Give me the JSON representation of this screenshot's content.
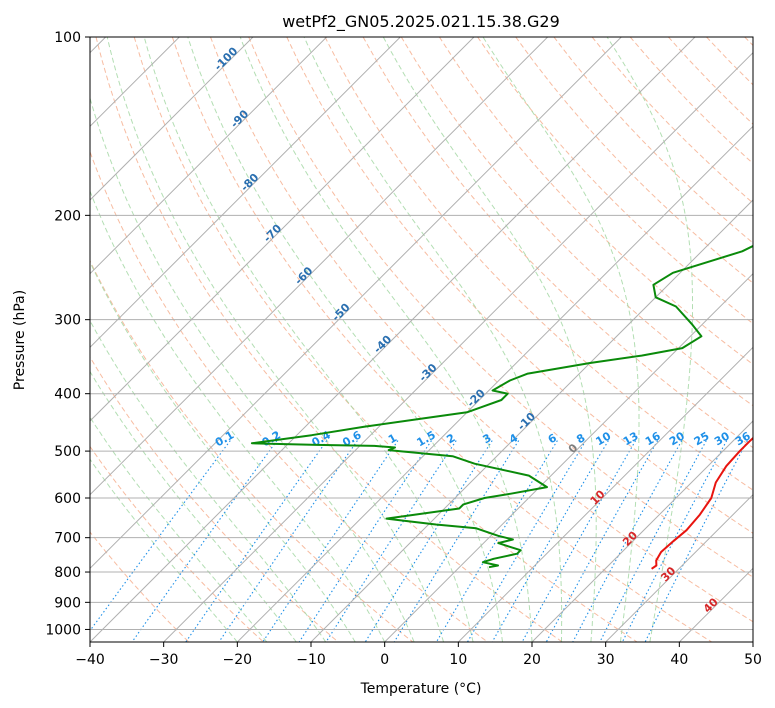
{
  "chart_data": {
    "type": "line",
    "title": "wetPf2_GN05.2025.021.15.38.G29",
    "xlabel": "Temperature (°C)",
    "ylabel": "Pressure (hPa)",
    "xlim": [
      -40,
      50
    ],
    "ylim": [
      1050,
      100
    ],
    "yscale": "log",
    "grid": true,
    "x_ticks": [
      -40,
      -30,
      -20,
      -10,
      0,
      10,
      20,
      30,
      40,
      50
    ],
    "y_ticks": [
      100,
      200,
      300,
      400,
      500,
      600,
      700,
      800,
      900,
      1000
    ],
    "isotherm_labels": [
      "-100",
      "-90",
      "-80",
      "-70",
      "-60",
      "-50",
      "-40",
      "-30",
      "-20",
      "-10",
      "0",
      "10",
      "20",
      "30",
      "40"
    ],
    "mixing_ratio_labels": [
      "0.1",
      "0.2",
      "0.4",
      "0.6",
      "1",
      "1.5",
      "2",
      "3",
      "4",
      "6",
      "8",
      "10",
      "13",
      "16",
      "20",
      "25",
      "30",
      "36"
    ],
    "colors": {
      "temperature": "#e8140f",
      "dewpoint": "#0a8a0a",
      "isotherm_cold": "#2a6fb0",
      "isotherm_warm": "#d62728",
      "isotherm_zero": "#7f7f7f",
      "mixing_ratio": "#1e90e8",
      "dry_adiabat": "#f4a582",
      "moist_adiabat": "#a6d8a6",
      "skewed_isotherm": "#b0b0b0",
      "isobar": "#b0b0b0",
      "upper_curve": "#d9c4a8"
    },
    "series": [
      {
        "name": "Temperature",
        "points": [
          [
            -2.2,
            100
          ],
          [
            -1.5,
            110
          ],
          [
            -0.5,
            125
          ],
          [
            1.5,
            145
          ],
          [
            3.5,
            165
          ],
          [
            5,
            180
          ],
          [
            6.5,
            195
          ],
          [
            7.5,
            210
          ],
          [
            9,
            230
          ],
          [
            12,
            255
          ],
          [
            13.5,
            275
          ],
          [
            14.5,
            300
          ],
          [
            15.8,
            320
          ],
          [
            17.5,
            340
          ],
          [
            18.5,
            360
          ],
          [
            19.8,
            380
          ],
          [
            21.2,
            400
          ],
          [
            22,
            420
          ],
          [
            22.4,
            440
          ],
          [
            22.4,
            460
          ],
          [
            22.3,
            480
          ],
          [
            22.3,
            500
          ],
          [
            22.5,
            530
          ],
          [
            23.3,
            565
          ],
          [
            24.8,
            600
          ],
          [
            25.5,
            640
          ],
          [
            25.8,
            680
          ],
          [
            25.5,
            710
          ],
          [
            25.3,
            740
          ],
          [
            25.8,
            765
          ],
          [
            26.5,
            780
          ],
          [
            26.3,
            790
          ]
        ]
      },
      {
        "name": "Dewpoint",
        "points": [
          [
            -2.5,
            100
          ],
          [
            -4.5,
            110
          ],
          [
            -6,
            125
          ],
          [
            -4.5,
            145
          ],
          [
            -2,
            165
          ],
          [
            -1.5,
            180
          ],
          [
            -1.5,
            200
          ],
          [
            -1.2,
            210
          ],
          [
            -4.5,
            230
          ],
          [
            -11,
            250
          ],
          [
            -12,
            262
          ],
          [
            -10,
            275
          ],
          [
            -6,
            285
          ],
          [
            -1.5,
            305
          ],
          [
            1.5,
            320
          ],
          [
            0.5,
            335
          ],
          [
            -4,
            345
          ],
          [
            -10,
            355
          ],
          [
            -17,
            370
          ],
          [
            -18.5,
            380
          ],
          [
            -19.5,
            395
          ],
          [
            -17,
            400
          ],
          [
            -17,
            410
          ],
          [
            -18.5,
            420
          ],
          [
            -20,
            430
          ],
          [
            -25,
            440
          ],
          [
            -32,
            455
          ],
          [
            -38,
            470
          ],
          [
            -45,
            485
          ],
          [
            -36,
            488
          ],
          [
            -28,
            490
          ],
          [
            -25,
            493
          ],
          [
            -25.5,
            498
          ],
          [
            -16,
            510
          ],
          [
            -12,
            525
          ],
          [
            -3,
            550
          ],
          [
            1,
            575
          ],
          [
            -3,
            590
          ],
          [
            -6,
            600
          ],
          [
            -8,
            615
          ],
          [
            -8,
            625
          ],
          [
            -16.5,
            650
          ],
          [
            -14,
            655
          ],
          [
            -9,
            665
          ],
          [
            -3,
            675
          ],
          [
            -1,
            685
          ],
          [
            1,
            695
          ],
          [
            3.5,
            705
          ],
          [
            2,
            715
          ],
          [
            4,
            725
          ],
          [
            6,
            735
          ],
          [
            6,
            745
          ],
          [
            3.5,
            760
          ],
          [
            2.5,
            770
          ],
          [
            5,
            780
          ],
          [
            4,
            785
          ]
        ]
      }
    ]
  }
}
